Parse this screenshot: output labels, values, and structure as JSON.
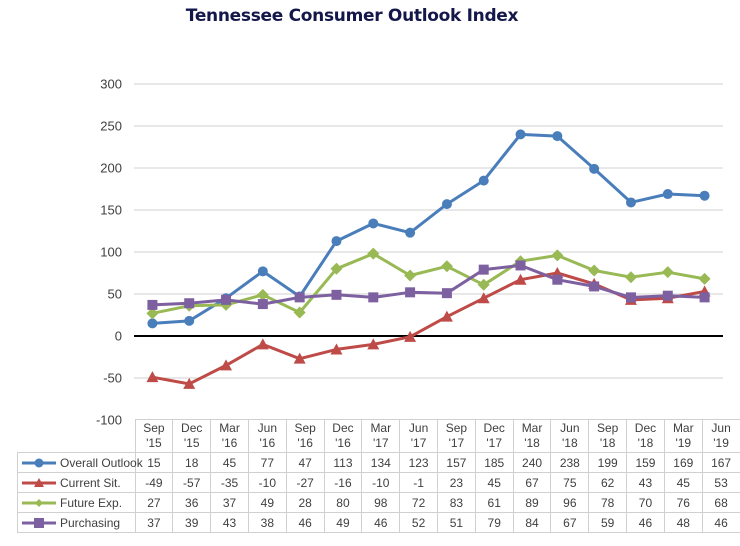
{
  "chart_data": {
    "type": "line",
    "title": "Tennessee Consumer Outlook Index",
    "xlabel": "",
    "ylabel": "",
    "ylim": [
      -100,
      300
    ],
    "yticks": [
      -100,
      -50,
      0,
      50,
      100,
      150,
      200,
      250,
      300
    ],
    "ytick_labels": [
      "-100",
      "-50",
      "0",
      "50",
      "100",
      "150",
      "200",
      "250",
      "300"
    ],
    "grid": "horizontal",
    "legend": "data-table-bottom",
    "categories": [
      [
        "Sep",
        "'15"
      ],
      [
        "Dec",
        "'15"
      ],
      [
        "Mar",
        "'16"
      ],
      [
        "Jun",
        "'16"
      ],
      [
        "Sep",
        "'16"
      ],
      [
        "Dec",
        "'16"
      ],
      [
        "Mar",
        "'17"
      ],
      [
        "Jun",
        "'17"
      ],
      [
        "Sep",
        "'17"
      ],
      [
        "Dec",
        "'17"
      ],
      [
        "Mar",
        "'18"
      ],
      [
        "Jun",
        "'18"
      ],
      [
        "Sep",
        "'18"
      ],
      [
        "Dec",
        "'18"
      ],
      [
        "Mar",
        "'19"
      ],
      [
        "Jun",
        "'19"
      ]
    ],
    "series": [
      {
        "name": "Overall Outlook",
        "color": "#4a7ebb",
        "marker": "circle",
        "values": [
          15,
          18,
          45,
          77,
          47,
          113,
          134,
          123,
          157,
          185,
          240,
          238,
          199,
          159,
          169,
          167
        ]
      },
      {
        "name": "Current Sit.",
        "color": "#be4b48",
        "marker": "triangle",
        "values": [
          -49,
          -57,
          -35,
          -10,
          -27,
          -16,
          -10,
          -1,
          23,
          45,
          67,
          75,
          62,
          43,
          45,
          53
        ]
      },
      {
        "name": "Future Exp.",
        "color": "#98b954",
        "marker": "diamond",
        "values": [
          27,
          36,
          37,
          49,
          28,
          80,
          98,
          72,
          83,
          61,
          89,
          96,
          78,
          70,
          76,
          68
        ]
      },
      {
        "name": "Purchasing",
        "color": "#7d60a0",
        "marker": "square",
        "values": [
          37,
          39,
          43,
          38,
          46,
          49,
          46,
          52,
          51,
          79,
          84,
          67,
          59,
          46,
          48,
          46
        ]
      }
    ]
  }
}
